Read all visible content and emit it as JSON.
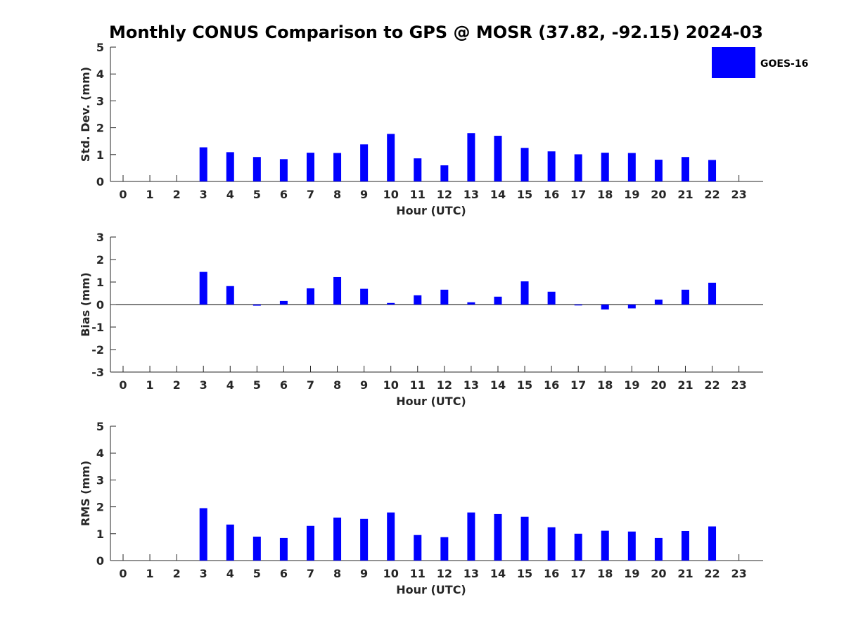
{
  "figure": {
    "title": "Monthly CONUS Comparison to GPS @ MOSR (37.82, -92.15) 2024-03",
    "legend": {
      "label": "GOES-16",
      "color": "#0000ff",
      "placement": "top-right"
    }
  },
  "chart_data": [
    {
      "type": "bar",
      "panel": "std-dev",
      "title": "",
      "xlabel": "Hour (UTC)",
      "ylabel": "Std. Dev. (mm)",
      "ylim": [
        0,
        5
      ],
      "yticks": [
        0,
        1,
        2,
        3,
        4,
        5
      ],
      "categories": [
        "0",
        "1",
        "2",
        "3",
        "4",
        "5",
        "6",
        "7",
        "8",
        "9",
        "10",
        "11",
        "12",
        "13",
        "14",
        "15",
        "16",
        "17",
        "18",
        "19",
        "20",
        "21",
        "22",
        "23"
      ],
      "series": [
        {
          "name": "GOES-16",
          "color": "#0000ff",
          "values": [
            null,
            null,
            null,
            1.27,
            1.09,
            0.91,
            0.83,
            1.07,
            1.06,
            1.38,
            1.77,
            0.86,
            0.6,
            1.8,
            1.7,
            1.25,
            1.12,
            1.01,
            1.07,
            1.06,
            0.81,
            0.91,
            0.8,
            null
          ]
        }
      ],
      "grid": false
    },
    {
      "type": "bar",
      "panel": "bias",
      "title": "",
      "xlabel": "Hour (UTC)",
      "ylabel": "Bias (mm)",
      "ylim": [
        -3,
        3
      ],
      "yticks": [
        -3,
        -2,
        -1,
        0,
        1,
        2,
        3
      ],
      "categories": [
        "0",
        "1",
        "2",
        "3",
        "4",
        "5",
        "6",
        "7",
        "8",
        "9",
        "10",
        "11",
        "12",
        "13",
        "14",
        "15",
        "16",
        "17",
        "18",
        "19",
        "20",
        "21",
        "22",
        "23"
      ],
      "series": [
        {
          "name": "GOES-16",
          "color": "#0000ff",
          "values": [
            null,
            null,
            null,
            1.45,
            0.82,
            -0.05,
            0.16,
            0.72,
            1.22,
            0.7,
            0.07,
            0.41,
            0.66,
            0.1,
            0.35,
            1.03,
            0.57,
            -0.04,
            -0.22,
            -0.17,
            0.22,
            0.66,
            0.97,
            null
          ]
        }
      ],
      "grid": false
    },
    {
      "type": "bar",
      "panel": "rms",
      "title": "",
      "xlabel": "Hour (UTC)",
      "ylabel": "RMS (mm)",
      "ylim": [
        0,
        5
      ],
      "yticks": [
        0,
        1,
        2,
        3,
        4,
        5
      ],
      "categories": [
        "0",
        "1",
        "2",
        "3",
        "4",
        "5",
        "6",
        "7",
        "8",
        "9",
        "10",
        "11",
        "12",
        "13",
        "14",
        "15",
        "16",
        "17",
        "18",
        "19",
        "20",
        "21",
        "22",
        "23"
      ],
      "series": [
        {
          "name": "GOES-16",
          "color": "#0000ff",
          "values": [
            null,
            null,
            null,
            1.95,
            1.34,
            0.89,
            0.84,
            1.29,
            1.6,
            1.55,
            1.79,
            0.95,
            0.87,
            1.79,
            1.73,
            1.63,
            1.24,
            1.0,
            1.11,
            1.08,
            0.84,
            1.1,
            1.27,
            null
          ]
        }
      ],
      "grid": false
    }
  ]
}
